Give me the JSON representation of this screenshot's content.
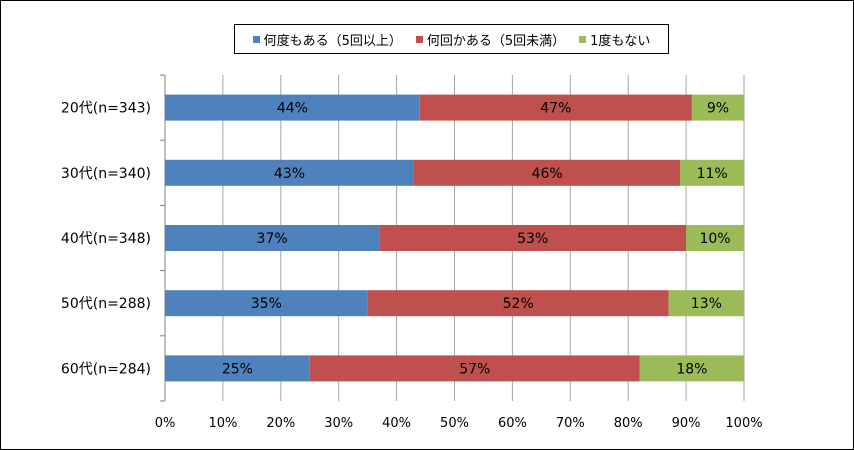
{
  "chart_data": {
    "type": "bar",
    "orientation": "horizontal",
    "stacked": true,
    "percent": true,
    "categories": [
      "20代(n=343)",
      "30代(n=340)",
      "40代(n=348)",
      "50代(n=288)",
      "60代(n=284)"
    ],
    "series": [
      {
        "name": "何度もある（5回以上）",
        "color": "#4f81bd",
        "values": [
          44,
          43,
          37,
          35,
          25
        ],
        "labels": [
          "44%",
          "43%",
          "37%",
          "35%",
          "25%"
        ]
      },
      {
        "name": "何回かある（5回未満）",
        "color": "#c0504d",
        "values": [
          47,
          46,
          53,
          52,
          57
        ],
        "labels": [
          "47%",
          "46%",
          "53%",
          "52%",
          "57%"
        ]
      },
      {
        "name": "1度もない",
        "color": "#9bbb59",
        "values": [
          9,
          11,
          10,
          13,
          18
        ],
        "labels": [
          "9%",
          "11%",
          "10%",
          "13%",
          "18%"
        ]
      }
    ],
    "xlim": [
      0,
      100
    ],
    "x_ticks": [
      "0%",
      "10%",
      "20%",
      "30%",
      "40%",
      "50%",
      "60%",
      "70%",
      "80%",
      "90%",
      "100%"
    ],
    "grid": true,
    "legend_position": "top"
  }
}
